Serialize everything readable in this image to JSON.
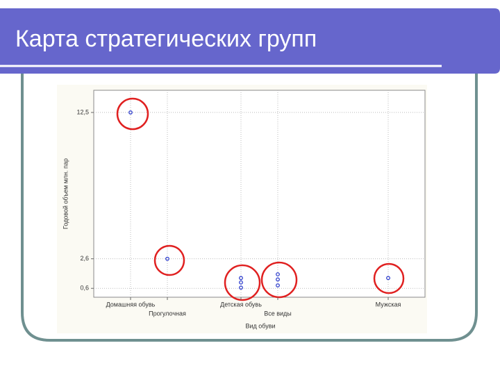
{
  "title": "Карта стратегических групп",
  "chart_data": {
    "type": "scatter",
    "x_label": "Вид обуви",
    "y_label": "Годовой объем млн. пар",
    "x": [
      1,
      2,
      4,
      4,
      4,
      5,
      5,
      5,
      8
    ],
    "series": [
      {
        "color": "#2233cc",
        "values": [
          12.5,
          2.6,
          1.3,
          1.0,
          0.65,
          1.55,
          1.2,
          0.8,
          1.3
        ]
      }
    ],
    "xlim": [
      0,
      9
    ],
    "xticks": [
      {
        "value": 1,
        "label": "Домашняя обувь"
      },
      {
        "value": 2,
        "label": "Прогулочная"
      },
      {
        "value": 4,
        "label": "Детская обувь"
      },
      {
        "value": 5,
        "label": "Все виды"
      },
      {
        "value": 8,
        "label": "Мужская"
      }
    ],
    "ylim": [
      0,
      14
    ],
    "yticks": [
      {
        "value": 12.5,
        "label": "12,5"
      },
      {
        "value": 2.6,
        "label": "2,6"
      },
      {
        "value": 0.6,
        "label": "0,6"
      }
    ],
    "grid": true
  }
}
